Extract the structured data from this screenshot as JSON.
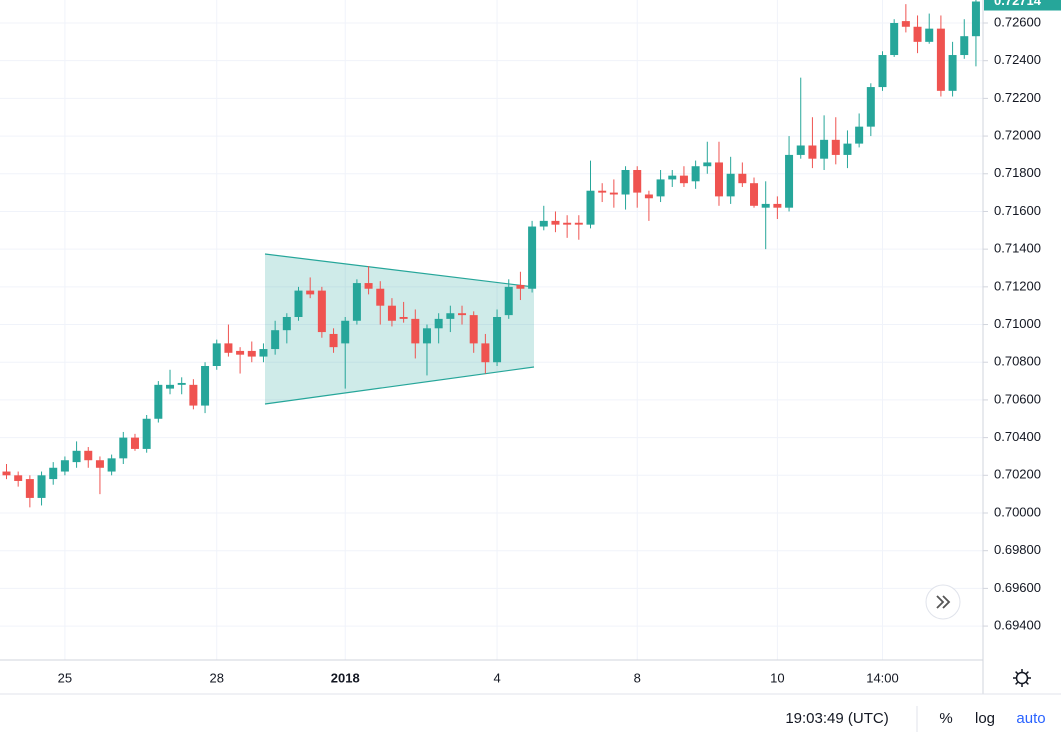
{
  "chart_data": {
    "type": "candlestick",
    "categories": [
      null,
      null,
      null,
      null,
      null,
      "25",
      null,
      null,
      null,
      null,
      null,
      null,
      null,
      null,
      null,
      null,
      null,
      null,
      "28",
      null,
      null,
      null,
      null,
      null,
      null,
      null,
      null,
      null,
      null,
      "2018",
      null,
      null,
      null,
      null,
      null,
      null,
      null,
      null,
      null,
      null,
      null,
      null,
      "4",
      null,
      null,
      null,
      null,
      null,
      null,
      null,
      null,
      null,
      null,
      null,
      "8",
      null,
      null,
      null,
      null,
      null,
      null,
      null,
      null,
      null,
      null,
      null,
      "10",
      null,
      null,
      null,
      null,
      null,
      null,
      null,
      null,
      "14:00",
      null,
      null,
      null,
      null,
      null,
      null,
      null,
      null
    ],
    "open": [
      0.7022,
      0.702,
      0.7018,
      0.7008,
      0.7018,
      0.7022,
      0.7027,
      0.7033,
      0.7028,
      0.7022,
      0.7029,
      0.704,
      0.7034,
      0.705,
      0.7066,
      0.7068,
      0.7068,
      0.7057,
      0.7078,
      0.709,
      0.7086,
      0.7086,
      0.7083,
      0.7087,
      0.7097,
      0.7104,
      0.7118,
      0.7118,
      0.7095,
      0.709,
      0.7102,
      0.7122,
      0.7119,
      0.711,
      0.7104,
      0.7103,
      0.709,
      0.7098,
      0.7103,
      0.7106,
      0.7105,
      0.709,
      0.708,
      0.7105,
      0.7121,
      0.7119,
      0.7152,
      0.7155,
      0.7154,
      0.7154,
      0.7153,
      0.7171,
      0.717,
      0.7169,
      0.7182,
      0.7169,
      0.7168,
      0.7177,
      0.7179,
      0.7176,
      0.7184,
      0.7186,
      0.7168,
      0.718,
      0.7175,
      0.7162,
      0.7164,
      0.7162,
      0.719,
      0.7195,
      0.7188,
      0.7198,
      0.719,
      0.7196,
      0.7205,
      0.7226,
      0.7243,
      0.7261,
      0.7258,
      0.725,
      0.7257,
      0.7224,
      0.7243,
      0.7253
    ],
    "high": [
      0.7026,
      0.7022,
      0.702,
      0.7022,
      0.7027,
      0.703,
      0.7038,
      0.7035,
      0.703,
      0.7031,
      0.7043,
      0.7042,
      0.7052,
      0.707,
      0.7076,
      0.7072,
      0.7071,
      0.708,
      0.7092,
      0.71,
      0.7088,
      0.7091,
      0.709,
      0.7102,
      0.7106,
      0.712,
      0.7125,
      0.712,
      0.7098,
      0.7104,
      0.7124,
      0.7131,
      0.7123,
      0.7114,
      0.7112,
      0.7108,
      0.71,
      0.7106,
      0.711,
      0.711,
      0.7107,
      0.7095,
      0.7108,
      0.7124,
      0.7128,
      0.7155,
      0.7163,
      0.716,
      0.7158,
      0.7158,
      0.7187,
      0.7175,
      0.7177,
      0.7184,
      0.7184,
      0.7171,
      0.7182,
      0.7182,
      0.7184,
      0.7187,
      0.7197,
      0.7197,
      0.7189,
      0.7186,
      0.7178,
      0.7176,
      0.7168,
      0.72,
      0.7231,
      0.721,
      0.7211,
      0.721,
      0.7203,
      0.7212,
      0.7228,
      0.7245,
      0.7262,
      0.727,
      0.7264,
      0.7265,
      0.7264,
      0.725,
      0.7262,
      0.7275
    ],
    "low": [
      0.7018,
      0.7014,
      0.7003,
      0.7004,
      0.7015,
      0.702,
      0.7024,
      0.7024,
      0.701,
      0.702,
      0.7026,
      0.7033,
      0.7032,
      0.7048,
      0.7063,
      0.7063,
      0.7055,
      0.7053,
      0.7076,
      0.7083,
      0.7074,
      0.708,
      0.708,
      0.7084,
      0.709,
      0.7102,
      0.7114,
      0.7093,
      0.7085,
      0.7066,
      0.71,
      0.7116,
      0.71,
      0.7099,
      0.7101,
      0.7082,
      0.7073,
      0.709,
      0.7096,
      0.71,
      0.7085,
      0.7074,
      0.7078,
      0.7103,
      0.7113,
      0.7117,
      0.715,
      0.7149,
      0.7146,
      0.7145,
      0.7151,
      0.7165,
      0.7162,
      0.7161,
      0.7162,
      0.7155,
      0.7165,
      0.7173,
      0.7173,
      0.7172,
      0.718,
      0.7163,
      0.7164,
      0.7173,
      0.7162,
      0.714,
      0.7156,
      0.716,
      0.7188,
      0.7183,
      0.7182,
      0.7185,
      0.7183,
      0.7194,
      0.72,
      0.7224,
      0.7242,
      0.7255,
      0.7244,
      0.7249,
      0.7221,
      0.7221,
      0.7241,
      0.7237
    ],
    "close": [
      0.702,
      0.7017,
      0.7008,
      0.702,
      0.7024,
      0.7028,
      0.7033,
      0.7028,
      0.7024,
      0.7029,
      0.704,
      0.7034,
      0.705,
      0.7068,
      0.7068,
      0.7069,
      0.7057,
      0.7078,
      0.709,
      0.7085,
      0.7084,
      0.7083,
      0.7087,
      0.7097,
      0.7104,
      0.7118,
      0.7116,
      0.7096,
      0.7088,
      0.7102,
      0.7122,
      0.7119,
      0.711,
      0.7102,
      0.7103,
      0.709,
      0.7098,
      0.7103,
      0.7106,
      0.7105,
      0.709,
      0.708,
      0.7104,
      0.712,
      0.7119,
      0.7152,
      0.7155,
      0.7153,
      0.7153,
      0.7153,
      0.7171,
      0.717,
      0.7169,
      0.7182,
      0.717,
      0.7167,
      0.7177,
      0.7179,
      0.7175,
      0.7184,
      0.7186,
      0.7168,
      0.718,
      0.7175,
      0.7163,
      0.7164,
      0.7162,
      0.719,
      0.7195,
      0.7188,
      0.7198,
      0.719,
      0.7196,
      0.7205,
      0.7226,
      0.7243,
      0.726,
      0.7258,
      0.725,
      0.7257,
      0.7224,
      0.7243,
      0.7253,
      0.72714
    ],
    "up_color": "#26a69a",
    "down_color": "#ef5350",
    "ylim": [
      0.6922,
      0.72722
    ],
    "yticks": [
      {
        "value": 0.694,
        "label": "0.69400"
      },
      {
        "value": 0.696,
        "label": "0.69600"
      },
      {
        "value": 0.698,
        "label": "0.69800"
      },
      {
        "value": 0.7,
        "label": "0.70000"
      },
      {
        "value": 0.702,
        "label": "0.70200"
      },
      {
        "value": 0.704,
        "label": "0.70400"
      },
      {
        "value": 0.706,
        "label": "0.70600"
      },
      {
        "value": 0.708,
        "label": "0.70800"
      },
      {
        "value": 0.71,
        "label": "0.71000"
      },
      {
        "value": 0.712,
        "label": "0.71200"
      },
      {
        "value": 0.714,
        "label": "0.71400"
      },
      {
        "value": 0.716,
        "label": "0.71600"
      },
      {
        "value": 0.718,
        "label": "0.71800"
      },
      {
        "value": 0.72,
        "label": "0.72000"
      },
      {
        "value": 0.722,
        "label": "0.72200"
      },
      {
        "value": 0.724,
        "label": "0.72400"
      },
      {
        "value": 0.726,
        "label": "0.72600"
      }
    ],
    "grid": true,
    "log_scale": false
  },
  "toolbar": {
    "time": "19:03:49 (UTC)",
    "percent": "%",
    "log": "log",
    "auto": "auto"
  }
}
